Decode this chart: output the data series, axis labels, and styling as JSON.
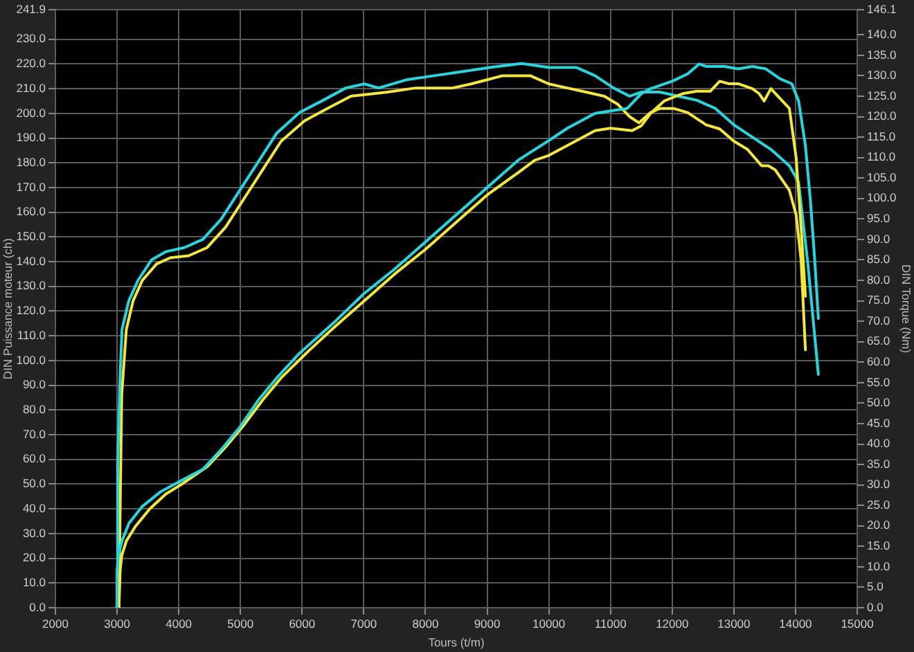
{
  "chart_data": {
    "type": "line",
    "xlabel": "Tours (t/m)",
    "ylabel": "DIN Puissance moteur (ch)",
    "y2label": "DIN Torque (Nm)",
    "xlim": [
      2000,
      15000
    ],
    "xticks": [
      2000,
      3000,
      4000,
      5000,
      6000,
      7000,
      8000,
      9000,
      10000,
      11000,
      12000,
      13000,
      14000,
      15000
    ],
    "ylim": [
      0,
      241.9
    ],
    "yticks": [
      {
        "value": 0,
        "label": "0.0"
      },
      {
        "value": 10,
        "label": "10.0"
      },
      {
        "value": 20,
        "label": "20.0"
      },
      {
        "value": 30,
        "label": "30.0"
      },
      {
        "value": 40,
        "label": "40.0"
      },
      {
        "value": 50,
        "label": "50.0"
      },
      {
        "value": 60,
        "label": "60.0"
      },
      {
        "value": 70,
        "label": "70.0"
      },
      {
        "value": 80,
        "label": "80.0"
      },
      {
        "value": 90,
        "label": "90.0"
      },
      {
        "value": 100,
        "label": "100.0"
      },
      {
        "value": 110,
        "label": "110.0"
      },
      {
        "value": 120,
        "label": "120.0"
      },
      {
        "value": 130,
        "label": "130.0"
      },
      {
        "value": 140,
        "label": "140.0"
      },
      {
        "value": 150,
        "label": "150.0"
      },
      {
        "value": 160,
        "label": "160.0"
      },
      {
        "value": 170,
        "label": "170.0"
      },
      {
        "value": 180,
        "label": "180.0"
      },
      {
        "value": 190,
        "label": "190.0"
      },
      {
        "value": 200,
        "label": "200.0"
      },
      {
        "value": 210,
        "label": "210.0"
      },
      {
        "value": 220,
        "label": "220.0"
      },
      {
        "value": 230,
        "label": "230.0"
      },
      {
        "value": 241.9,
        "label": "241.9"
      }
    ],
    "y2lim": [
      0,
      146.1
    ],
    "y2ticks": [
      {
        "value": 0,
        "label": "0.0"
      },
      {
        "value": 5,
        "label": "5.0"
      },
      {
        "value": 10,
        "label": "10.0"
      },
      {
        "value": 15,
        "label": "15.0"
      },
      {
        "value": 20,
        "label": "20.0"
      },
      {
        "value": 25,
        "label": "25.0"
      },
      {
        "value": 30,
        "label": "30.0"
      },
      {
        "value": 35,
        "label": "35.0"
      },
      {
        "value": 40,
        "label": "40.0"
      },
      {
        "value": 45,
        "label": "45.0"
      },
      {
        "value": 50,
        "label": "50.0"
      },
      {
        "value": 55,
        "label": "55.0"
      },
      {
        "value": 60,
        "label": "60.0"
      },
      {
        "value": 65,
        "label": "65.0"
      },
      {
        "value": 70,
        "label": "70.0"
      },
      {
        "value": 75,
        "label": "75.0"
      },
      {
        "value": 80,
        "label": "80.0"
      },
      {
        "value": 85,
        "label": "85.0"
      },
      {
        "value": 90,
        "label": "90.0"
      },
      {
        "value": 95,
        "label": "95.0"
      },
      {
        "value": 100,
        "label": "100.0"
      },
      {
        "value": 105,
        "label": "105.0"
      },
      {
        "value": 110,
        "label": "110.0"
      },
      {
        "value": 115,
        "label": "115.0"
      },
      {
        "value": 120,
        "label": "120.0"
      },
      {
        "value": 125,
        "label": "125.0"
      },
      {
        "value": 130,
        "label": "130.0"
      },
      {
        "value": 135,
        "label": "135.0"
      },
      {
        "value": 140,
        "label": "140.0"
      },
      {
        "value": 146.1,
        "label": "146.1"
      }
    ],
    "grid": true,
    "marker": "none",
    "line_style": "solid",
    "series": [
      {
        "color": "#20d8e0",
        "x": [
          2990,
          3000,
          3020,
          3080,
          3190,
          3410,
          3710,
          4010,
          4390,
          4690,
          4990,
          5290,
          5590,
          5960,
          6500,
          7000,
          7500,
          8000,
          8500,
          9000,
          9500,
          10000,
          10300,
          10750,
          11000,
          11270,
          11500,
          11650,
          12000,
          12250,
          12440,
          12550,
          12850,
          13070,
          13300,
          13520,
          13750,
          13940,
          14050,
          14160,
          14240,
          14310,
          14370
        ],
        "values": [
          0,
          15,
          21,
          27,
          34,
          41,
          47,
          51,
          56,
          64,
          73,
          84,
          93,
          103,
          115,
          127,
          137,
          148,
          159,
          170,
          181,
          189,
          194,
          200,
          201,
          202,
          208,
          210,
          213,
          216,
          220,
          219,
          219,
          218,
          219,
          218,
          214,
          212,
          205,
          187,
          165,
          141,
          117
        ]
      },
      {
        "color": "#f4e832",
        "x": [
          3030,
          3050,
          3075,
          3150,
          3300,
          3530,
          3790,
          4050,
          4460,
          4760,
          5060,
          5360,
          5660,
          6110,
          6500,
          7000,
          7500,
          8000,
          8500,
          9000,
          9500,
          9770,
          10000,
          10300,
          10750,
          11000,
          11350,
          11500,
          11650,
          11870,
          12170,
          12400,
          12620,
          12770,
          12920,
          13070,
          13300,
          13410,
          13490,
          13600,
          13750,
          13900,
          14010,
          14090,
          14160
        ],
        "values": [
          0,
          15,
          21,
          27,
          33,
          40,
          46,
          50,
          57,
          65,
          74,
          84,
          93,
          104,
          113,
          124,
          135,
          145,
          156,
          167,
          176,
          181,
          183,
          187,
          193,
          194,
          193,
          195,
          200,
          205,
          208,
          209,
          209,
          213,
          212,
          212,
          210,
          208,
          205,
          210,
          206,
          202,
          182,
          154,
          126
        ]
      },
      {
        "color": "#20d8e0",
        "axis": "y2",
        "x": [
          2990,
          3010,
          3050,
          3080,
          3190,
          3340,
          3560,
          3790,
          4090,
          4390,
          4690,
          4990,
          5290,
          5590,
          5960,
          6340,
          6710,
          7010,
          7240,
          7690,
          8140,
          8590,
          9040,
          9560,
          10000,
          10450,
          10750,
          11050,
          11310,
          11500,
          11800,
          12100,
          12400,
          12700,
          13000,
          13300,
          13600,
          13900,
          14050,
          14200,
          14370
        ],
        "values": [
          0,
          35,
          57,
          68,
          75,
          80,
          85,
          87,
          88,
          90,
          95,
          102,
          109,
          116,
          121,
          124,
          127,
          128,
          127,
          129,
          130,
          131,
          132,
          133,
          132,
          132,
          130,
          127,
          125,
          126,
          126,
          125,
          124,
          122,
          118,
          115,
          112,
          108,
          104,
          84,
          57
        ]
      },
      {
        "color": "#f4e832",
        "axis": "y2",
        "x": [
          3030,
          3050,
          3075,
          3150,
          3260,
          3410,
          3640,
          3860,
          4160,
          4460,
          4760,
          5060,
          5360,
          5660,
          6040,
          6410,
          6790,
          7090,
          7390,
          7840,
          8440,
          8740,
          9000,
          9250,
          9500,
          9700,
          10000,
          10300,
          10600,
          10900,
          11120,
          11310,
          11460,
          11650,
          11800,
          12020,
          12250,
          12550,
          12770,
          13000,
          13220,
          13450,
          13560,
          13670,
          13900,
          14010,
          14090,
          14160
        ],
        "values": [
          0,
          24,
          52,
          68,
          75,
          80,
          84,
          85.5,
          86,
          88,
          93,
          100,
          107,
          114,
          119,
          122,
          125,
          125.5,
          126,
          127,
          127,
          128,
          129,
          130,
          130,
          130,
          128,
          127,
          126,
          125,
          123,
          120,
          118.5,
          121,
          122,
          122,
          121,
          118,
          117,
          114,
          112,
          108,
          108,
          107,
          102,
          96,
          85,
          63
        ]
      }
    ]
  }
}
